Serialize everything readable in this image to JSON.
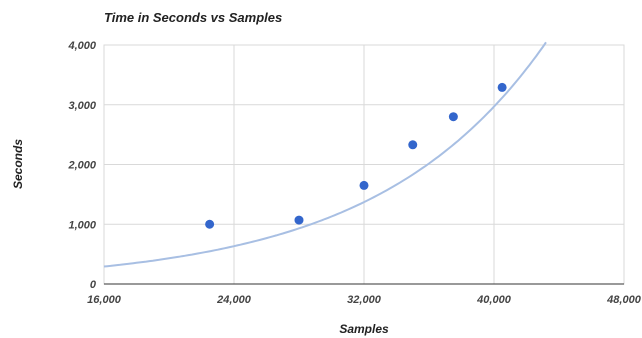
{
  "chart_data": {
    "type": "scatter",
    "title": "Time in Seconds vs Samples",
    "xlabel": "Samples",
    "ylabel": "Seconds",
    "xlim": [
      16000,
      48000
    ],
    "ylim": [
      0,
      4000
    ],
    "x_ticks": [
      16000,
      24000,
      32000,
      40000,
      48000
    ],
    "x_tick_labels": [
      "16,000",
      "24,000",
      "32,000",
      "40,000",
      "48,000"
    ],
    "y_ticks": [
      0,
      1000,
      2000,
      3000,
      4000
    ],
    "y_tick_labels": [
      "0",
      "1,000",
      "2,000",
      "3,000",
      "4,000"
    ],
    "grid": true,
    "legend": "none",
    "series": [
      {
        "points": [
          {
            "x": 22500,
            "y": 1000
          },
          {
            "x": 28000,
            "y": 1070
          },
          {
            "x": 32000,
            "y": 1650
          },
          {
            "x": 35000,
            "y": 2330
          },
          {
            "x": 37500,
            "y": 2800
          },
          {
            "x": 40500,
            "y": 3290
          }
        ],
        "color": "#3366cc"
      }
    ],
    "trendline": {
      "type": "exponential",
      "color": "#a8bfe3",
      "coefficient_a": 62.3,
      "coefficient_b": 9.66e-05
    }
  }
}
